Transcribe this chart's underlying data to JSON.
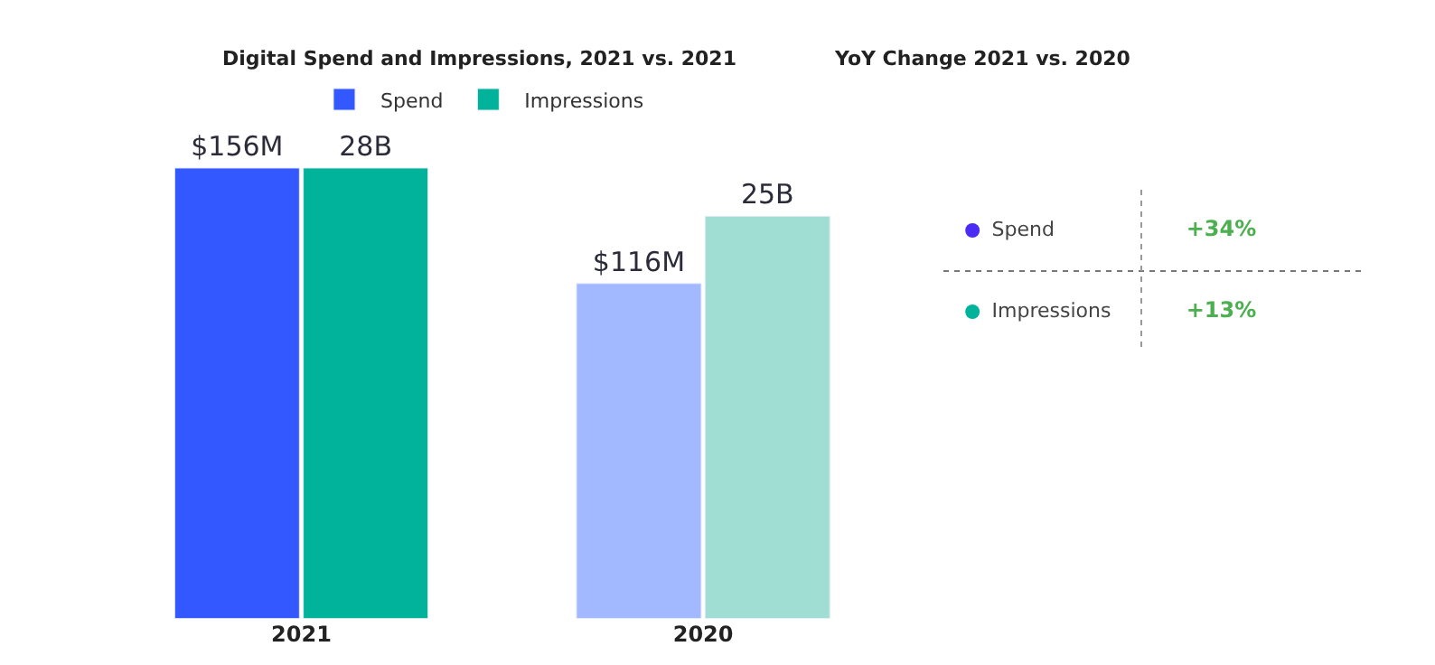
{
  "chart_data": [
    {
      "type": "bar",
      "title": "Digital Spend and Impressions, 2021 vs. 2021",
      "categories": [
        "2021",
        "2020"
      ],
      "legend": "top",
      "tick_labels": "x",
      "series": [
        {
          "name": "Spend",
          "colors": [
            "#3358ff",
            "#a3b9ff"
          ],
          "values": [
            156,
            116
          ],
          "value_labels": [
            "$156M",
            "$116M"
          ]
        },
        {
          "name": "Impressions",
          "axis": "y2",
          "colors": [
            "#00b39a",
            "#a0ded4"
          ],
          "values": [
            28,
            25
          ],
          "value_labels": [
            "28B",
            "25B"
          ]
        }
      ]
    },
    {
      "type": "other",
      "title": "YoY Change 2021 vs. 2020",
      "categories": [
        "Spend",
        "Impressions"
      ],
      "colors": [
        "#4a2cf5",
        "#00b39a"
      ],
      "value_labels": [
        "+34%",
        "+13%"
      ]
    }
  ]
}
